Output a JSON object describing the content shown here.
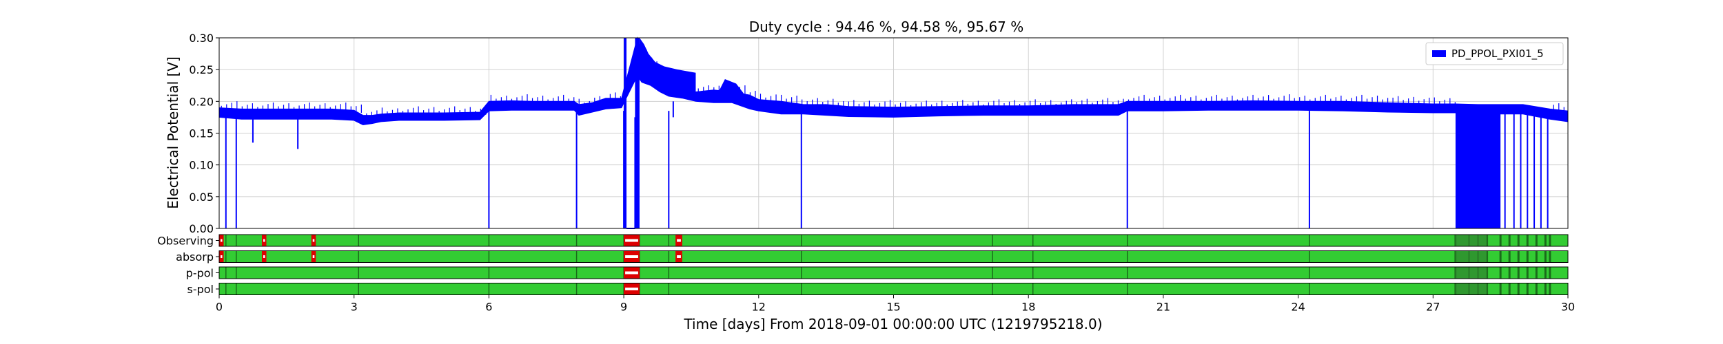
{
  "chart_data": {
    "type": "line",
    "title": "Duty cycle : 94.46 %, 94.58 %, 95.67 %",
    "xlabel": "Time [days] From 2018-09-01 00:00:00 UTC (1219795218.0)",
    "ylabel": "Electrical Potential [V]",
    "xlim": [
      0,
      30
    ],
    "ylim": [
      0,
      0.3
    ],
    "x_ticks": [
      "0",
      "3",
      "6",
      "9",
      "12",
      "15",
      "18",
      "21",
      "24",
      "27",
      "30"
    ],
    "y_ticks": [
      "0.00",
      "0.05",
      "0.10",
      "0.15",
      "0.20",
      "0.25",
      "0.30"
    ],
    "grid": true,
    "legend_position": "top-right",
    "series": [
      {
        "name": "PD_PPOL_PXI01_5",
        "color": "#0000ff",
        "band_x": [
          0,
          0.5,
          1,
          2,
          2.5,
          3,
          3.2,
          3.4,
          3.6,
          4,
          5,
          5.8,
          6,
          6.5,
          7,
          7.5,
          7.9,
          8.0,
          8.3,
          8.6,
          8.95,
          9.3,
          9.4,
          9.6,
          9.8,
          10.0,
          10.3,
          10.6,
          11,
          11.4,
          11.8,
          12,
          12.5,
          13,
          13.5,
          14,
          15,
          16,
          17,
          18,
          19,
          20,
          20.2,
          20.5,
          21,
          22,
          23,
          24,
          25,
          26,
          27,
          27.5,
          28,
          29,
          29.6,
          30
        ],
        "band_low": [
          0.175,
          0.172,
          0.172,
          0.172,
          0.172,
          0.17,
          0.163,
          0.165,
          0.168,
          0.17,
          0.17,
          0.171,
          0.185,
          0.186,
          0.186,
          0.186,
          0.186,
          0.178,
          0.183,
          0.188,
          0.19,
          0.24,
          0.23,
          0.225,
          0.215,
          0.208,
          0.205,
          0.2,
          0.198,
          0.198,
          0.188,
          0.185,
          0.18,
          0.18,
          0.178,
          0.176,
          0.175,
          0.177,
          0.178,
          0.178,
          0.178,
          0.178,
          0.185,
          0.185,
          0.185,
          0.186,
          0.186,
          0.186,
          0.185,
          0.183,
          0.182,
          0.182,
          0.18,
          0.18,
          0.172,
          0.168
        ],
        "band_high": [
          0.19,
          0.188,
          0.188,
          0.188,
          0.188,
          0.186,
          0.178,
          0.178,
          0.18,
          0.182,
          0.182,
          0.183,
          0.2,
          0.201,
          0.2,
          0.2,
          0.2,
          0.195,
          0.198,
          0.205,
          0.205,
          0.3,
          0.275,
          0.26,
          0.243,
          0.23,
          0.225,
          0.215,
          0.218,
          0.215,
          0.21,
          0.203,
          0.2,
          0.195,
          0.195,
          0.192,
          0.191,
          0.192,
          0.193,
          0.193,
          0.195,
          0.195,
          0.2,
          0.2,
          0.2,
          0.2,
          0.201,
          0.2,
          0.2,
          0.198,
          0.196,
          0.196,
          0.195,
          0.195,
          0.188,
          0.185
        ],
        "drop_to_zero_at": [
          0.15,
          0.38,
          6.0,
          7.95,
          9.0,
          10.0,
          12.95,
          20.2,
          24.25
        ],
        "partial_drops": [
          [
            0.75,
            0.135
          ],
          [
            1.75,
            0.125
          ],
          [
            9.25,
            0.0
          ],
          [
            10.1,
            0.2
          ]
        ],
        "high_segment": [
          9.0,
          9.35,
          0.3
        ],
        "noise_block": [
          27.5,
          29.6,
          0.0,
          0.19
        ]
      }
    ],
    "segments": [
      {
        "label": "Observing",
        "good_color": "#33cc33",
        "bad_color": "#dd0000",
        "gaps": [
          [
            0.0,
            0.1
          ],
          [
            0.95,
            1.05
          ],
          [
            2.05,
            2.15
          ],
          [
            9.0,
            9.35
          ],
          [
            10.15,
            10.3
          ]
        ]
      },
      {
        "label": "absorp",
        "good_color": "#33cc33",
        "bad_color": "#dd0000",
        "gaps": [
          [
            0.0,
            0.1
          ],
          [
            0.95,
            1.05
          ],
          [
            2.05,
            2.15
          ],
          [
            9.0,
            9.35
          ],
          [
            10.15,
            10.3
          ]
        ]
      },
      {
        "label": "p-pol",
        "good_color": "#33cc33",
        "bad_color": "#dd0000",
        "gaps": [
          [
            9.0,
            9.35
          ]
        ]
      },
      {
        "label": "s-pol",
        "good_color": "#33cc33",
        "bad_color": "#dd0000",
        "gaps": [
          [
            9.0,
            9.35
          ]
        ]
      }
    ],
    "segment_edges": [
      0.15,
      0.38,
      3.1,
      6.0,
      7.95,
      9.0,
      9.35,
      10.0,
      12.95,
      17.2,
      18.1,
      20.2,
      24.25,
      27.5,
      27.8,
      28.0,
      28.2,
      28.5,
      28.7,
      28.9,
      29.1,
      29.3,
      29.5,
      29.6
    ]
  }
}
